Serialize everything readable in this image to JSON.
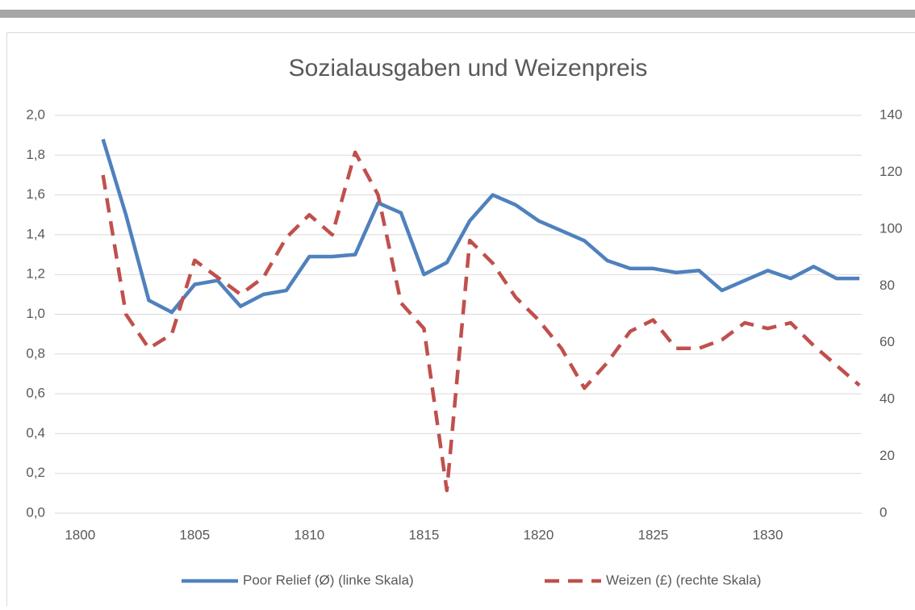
{
  "chart_data": {
    "type": "line",
    "title": "Sozialausgaben und Weizenpreis",
    "x": [
      1801,
      1802,
      1803,
      1804,
      1805,
      1806,
      1807,
      1808,
      1809,
      1810,
      1811,
      1812,
      1813,
      1814,
      1815,
      1816,
      1817,
      1818,
      1819,
      1820,
      1821,
      1822,
      1823,
      1824,
      1825,
      1826,
      1827,
      1828,
      1829,
      1830,
      1831,
      1832,
      1833,
      1834
    ],
    "series": [
      {
        "name": "Poor Relief (Ø) (linke Skala)",
        "color": "#4f81bd",
        "dash": false,
        "values": [
          1.88,
          1.5,
          1.07,
          1.01,
          1.15,
          1.17,
          1.04,
          1.1,
          1.12,
          1.29,
          1.29,
          1.3,
          1.56,
          1.51,
          1.2,
          1.26,
          1.47,
          1.6,
          1.55,
          1.47,
          1.42,
          1.37,
          1.27,
          1.23,
          1.23,
          1.21,
          1.22,
          1.12,
          1.17,
          1.22,
          1.18,
          1.24,
          1.18,
          1.18
        ]
      },
      {
        "name": "Weizen (£) (rechte Skala)",
        "color": "#c0504d",
        "dash": true,
        "axis": "y2",
        "values": [
          119,
          70,
          58,
          63,
          89,
          83,
          77,
          83,
          97,
          105,
          98,
          127,
          112,
          74,
          65,
          8,
          96,
          88,
          76,
          68,
          58,
          44,
          53,
          64,
          68,
          58,
          58,
          61,
          67,
          65,
          67,
          59,
          52,
          45
        ]
      }
    ],
    "xlim": [
      1798.9,
      1834.1
    ],
    "xticks": [
      1800,
      1805,
      1810,
      1815,
      1820,
      1825,
      1830
    ],
    "ylim": [
      0,
      2
    ],
    "yticks": [
      {
        "value": 0,
        "label": "0,0"
      },
      {
        "value": 0.2,
        "label": "0,2"
      },
      {
        "value": 0.4,
        "label": "0,4"
      },
      {
        "value": 0.6,
        "label": "0,6"
      },
      {
        "value": 0.8,
        "label": "0,8"
      },
      {
        "value": 1,
        "label": "1,0"
      },
      {
        "value": 1.2,
        "label": "1,2"
      },
      {
        "value": 1.4,
        "label": "1,4"
      },
      {
        "value": 1.6,
        "label": "1,6"
      },
      {
        "value": 1.8,
        "label": "1,8"
      },
      {
        "value": 2,
        "label": "2,0"
      }
    ],
    "y2lim": [
      0,
      140
    ],
    "y2ticks": [
      0,
      20,
      40,
      60,
      80,
      100,
      120,
      140
    ],
    "grid": true,
    "legend": "bottom"
  }
}
